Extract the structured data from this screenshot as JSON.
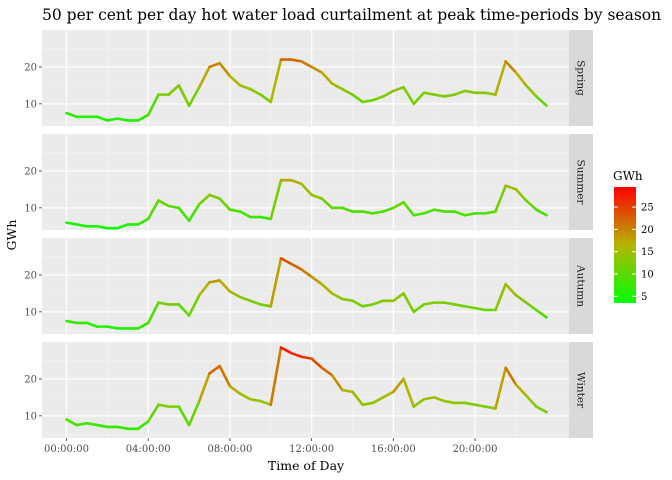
{
  "chart_data": {
    "type": "line",
    "title": "50 per cent per day hot water load curtailment at peak time-periods by season",
    "xlabel": "Time of Day",
    "ylabel": "GWh",
    "x_unit": "hours",
    "x_tick_labels": [
      "00:00:00",
      "04:00:00",
      "08:00:00",
      "12:00:00",
      "16:00:00",
      "20:00:00"
    ],
    "x_tick_values": [
      0,
      4,
      8,
      12,
      16,
      20
    ],
    "xlim": [
      -1.2,
      24.6
    ],
    "y_ticks": [
      10,
      20
    ],
    "ylim": [
      4,
      30
    ],
    "grid": true,
    "legend": {
      "title": "GWh",
      "position": "right",
      "labels": [
        5,
        10,
        15,
        20,
        25
      ],
      "range": [
        3.5,
        29.5
      ],
      "colors": [
        "#00ff00",
        "#ff0000"
      ]
    },
    "series": [
      {
        "name": "Spring",
        "x": [
          0,
          0.5,
          1,
          1.5,
          2,
          2.5,
          3,
          3.5,
          4,
          4.5,
          5,
          5.5,
          6,
          6.5,
          7,
          7.5,
          8,
          8.5,
          9,
          9.5,
          10,
          10.5,
          11,
          11.5,
          12,
          12.5,
          13,
          13.5,
          14,
          14.5,
          15,
          15.5,
          16,
          16.5,
          17,
          17.5,
          18,
          18.5,
          19,
          19.5,
          20,
          20.5,
          21,
          21.5,
          22,
          22.5,
          23,
          23.5
        ],
        "y": [
          7.5,
          6.5,
          6.5,
          6.5,
          5.5,
          6,
          5.5,
          5.5,
          7,
          12.5,
          12.5,
          15,
          9.5,
          14.5,
          20,
          21,
          17.5,
          15,
          14,
          12.5,
          10.5,
          22,
          22,
          21.5,
          20,
          18.5,
          15.5,
          14,
          12.5,
          10.5,
          11,
          12,
          13.5,
          14.5,
          10,
          13,
          12.5,
          12,
          12.5,
          13.5,
          13,
          13,
          12.5,
          21.5,
          18.5,
          15,
          12,
          9.5
        ]
      },
      {
        "name": "Summer",
        "x": [
          0,
          0.5,
          1,
          1.5,
          2,
          2.5,
          3,
          3.5,
          4,
          4.5,
          5,
          5.5,
          6,
          6.5,
          7,
          7.5,
          8,
          8.5,
          9,
          9.5,
          10,
          10.5,
          11,
          11.5,
          12,
          12.5,
          13,
          13.5,
          14,
          14.5,
          15,
          15.5,
          16,
          16.5,
          17,
          17.5,
          18,
          18.5,
          19,
          19.5,
          20,
          20.5,
          21,
          21.5,
          22,
          22.5,
          23,
          23.5
        ],
        "y": [
          6,
          5.5,
          5,
          5,
          4.5,
          4.5,
          5.5,
          5.5,
          7,
          12,
          10.5,
          10,
          6.5,
          11,
          13.5,
          12.5,
          9.5,
          9,
          7.5,
          7.5,
          7,
          17.5,
          17.5,
          16.5,
          13.5,
          12.5,
          10,
          10,
          9,
          9,
          8.5,
          9,
          10,
          11.5,
          8,
          8.5,
          9.5,
          9,
          9,
          8,
          8.5,
          8.5,
          9,
          16,
          15,
          12,
          9.5,
          8
        ]
      },
      {
        "name": "Autumn",
        "x": [
          0,
          0.5,
          1,
          1.5,
          2,
          2.5,
          3,
          3.5,
          4,
          4.5,
          5,
          5.5,
          6,
          6.5,
          7,
          7.5,
          8,
          8.5,
          9,
          9.5,
          10,
          10.5,
          11,
          11.5,
          12,
          12.5,
          13,
          13.5,
          14,
          14.5,
          15,
          15.5,
          16,
          16.5,
          17,
          17.5,
          18,
          18.5,
          19,
          19.5,
          20,
          20.5,
          21,
          21.5,
          22,
          22.5,
          23,
          23.5
        ],
        "y": [
          7.5,
          7,
          7,
          6,
          6,
          5.5,
          5.5,
          5.5,
          7,
          12.5,
          12,
          12,
          9,
          14.5,
          18,
          18.5,
          15.5,
          14,
          13,
          12,
          11.5,
          24.5,
          23,
          21.5,
          19.5,
          17.5,
          15,
          13.5,
          13,
          11.5,
          12,
          13,
          13,
          15,
          10,
          12,
          12.5,
          12.5,
          12,
          11.5,
          11,
          10.5,
          10.5,
          17.5,
          14.5,
          12.5,
          10.5,
          8.5
        ]
      },
      {
        "name": "Winter",
        "x": [
          0,
          0.5,
          1,
          1.5,
          2,
          2.5,
          3,
          3.5,
          4,
          4.5,
          5,
          5.5,
          6,
          6.5,
          7,
          7.5,
          8,
          8.5,
          9,
          9.5,
          10,
          10.5,
          11,
          11.5,
          12,
          12.5,
          13,
          13.5,
          14,
          14.5,
          15,
          15.5,
          16,
          16.5,
          17,
          17.5,
          18,
          18.5,
          19,
          19.5,
          20,
          20.5,
          21,
          21.5,
          22,
          22.5,
          23,
          23.5
        ],
        "y": [
          9,
          7.5,
          8,
          7.5,
          7,
          7,
          6.5,
          6.5,
          8.5,
          13,
          12.5,
          12.5,
          7.5,
          14,
          21.5,
          23.5,
          18,
          16,
          14.5,
          14,
          13,
          28.5,
          27,
          26,
          25.5,
          23,
          21,
          17,
          16.5,
          13,
          13.5,
          15,
          16.5,
          20,
          12.5,
          14.5,
          15,
          14,
          13.5,
          13.5,
          13,
          12.5,
          12,
          23,
          18.5,
          15.5,
          12.5,
          11
        ]
      }
    ]
  }
}
